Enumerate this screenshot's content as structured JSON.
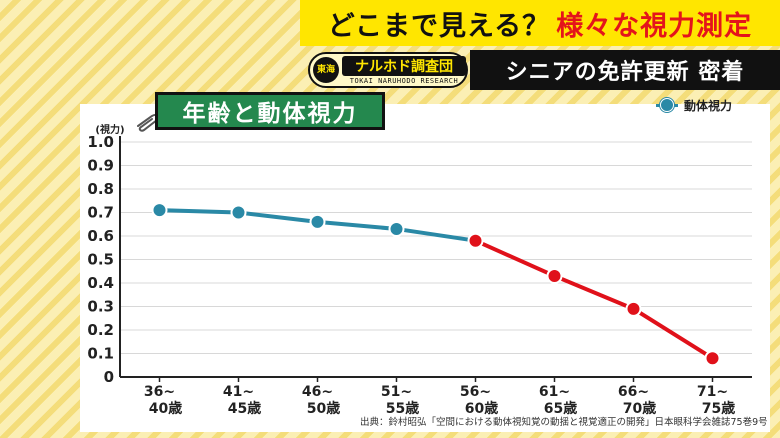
{
  "header": {
    "title_black": "どこまで見える？",
    "title_red": "様々な視力測定",
    "subtitle": "シニアの免許更新 密着",
    "logo_badge": "東海",
    "logo_main": "ナルホド調査団",
    "logo_sub": "TOKAI NARUHODO RESEARCH"
  },
  "chart_title": "年齢と動体視力",
  "legend_label": "動体視力",
  "source": "出典：鈴村昭弘「空間における動体視知覚の動揺と視覚適正の開発」日本眼科学会雑誌75巻9号",
  "colors": {
    "series": "#2a89a6",
    "highlight": "#e0111a",
    "title_bg": "#24884e",
    "banner": "#ffe600"
  },
  "chart_data": {
    "type": "line",
    "title": "年齢と動体視力",
    "ylabel": "(視力)",
    "ylim": [
      0,
      1.0
    ],
    "yticks": [
      "0",
      "0.1",
      "0.2",
      "0.3",
      "0.4",
      "0.5",
      "0.6",
      "0.7",
      "0.8",
      "0.9",
      "1.0"
    ],
    "categories": [
      [
        "36~",
        "40歳"
      ],
      [
        "41~",
        "45歳"
      ],
      [
        "46~",
        "50歳"
      ],
      [
        "51~",
        "55歳"
      ],
      [
        "56~",
        "60歳"
      ],
      [
        "61~",
        "65歳"
      ],
      [
        "66~",
        "70歳"
      ],
      [
        "71~",
        "75歳"
      ]
    ],
    "series": [
      {
        "name": "動体視力",
        "values": [
          0.71,
          0.7,
          0.66,
          0.63,
          0.58,
          0.43,
          0.29,
          0.08
        ],
        "highlight_from_index": 4
      }
    ],
    "grid": true,
    "legend": "top-right"
  }
}
